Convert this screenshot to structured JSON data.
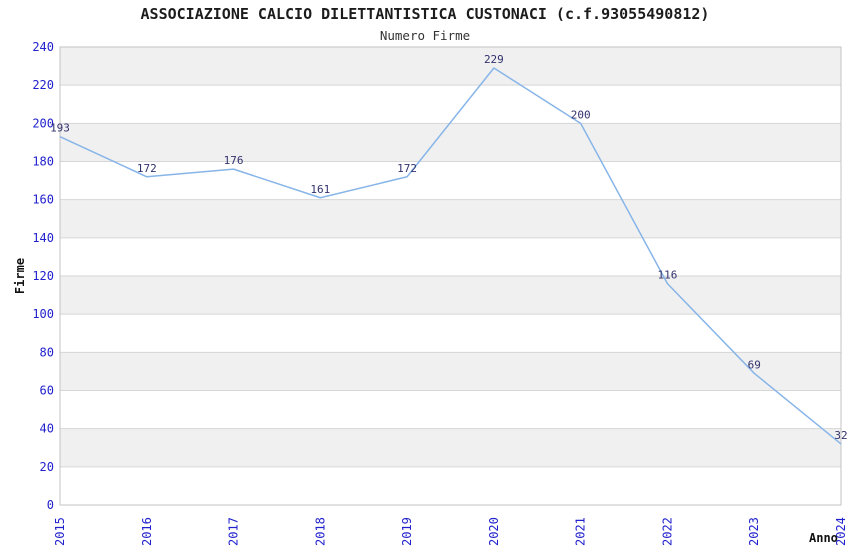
{
  "title": "ASSOCIAZIONE CALCIO DILETTANTISTICA CUSTONACI (c.f.93055490812)",
  "chart_data": {
    "type": "line",
    "title": "ASSOCIAZIONE CALCIO DILETTANTISTICA CUSTONACI (c.f.93055490812)",
    "subtitle": "Numero Firme",
    "x": [
      "2015",
      "2016",
      "2017",
      "2018",
      "2019",
      "2020",
      "2021",
      "2022",
      "2023",
      "2024"
    ],
    "series": [
      {
        "name": "Numero Firme",
        "values": [
          193,
          172,
          176,
          161,
          172,
          229,
          200,
          116,
          69,
          32
        ]
      }
    ],
    "xlabel": "Anno",
    "ylabel": "Firme",
    "ylim": [
      0,
      240
    ],
    "ytick_step": 20,
    "y_ticks": [
      0,
      20,
      40,
      60,
      80,
      100,
      120,
      140,
      160,
      180,
      200,
      220,
      240
    ],
    "legend": "none",
    "grid": "horizontal-bands-alternating",
    "markers": "none",
    "data_labels_visible": true,
    "colors": {
      "line": "#87b5e8",
      "tick_label": "#2121cd",
      "data_label": "#32326e",
      "band": "#f0f0f0",
      "band_alt": "#ffffff",
      "grid_line": "#d6d6d6",
      "border": "#c3c3c3",
      "title": "#1c1c1c",
      "subtitle": "#333333",
      "axis_title": "#111111",
      "background": "#ffffff"
    }
  }
}
